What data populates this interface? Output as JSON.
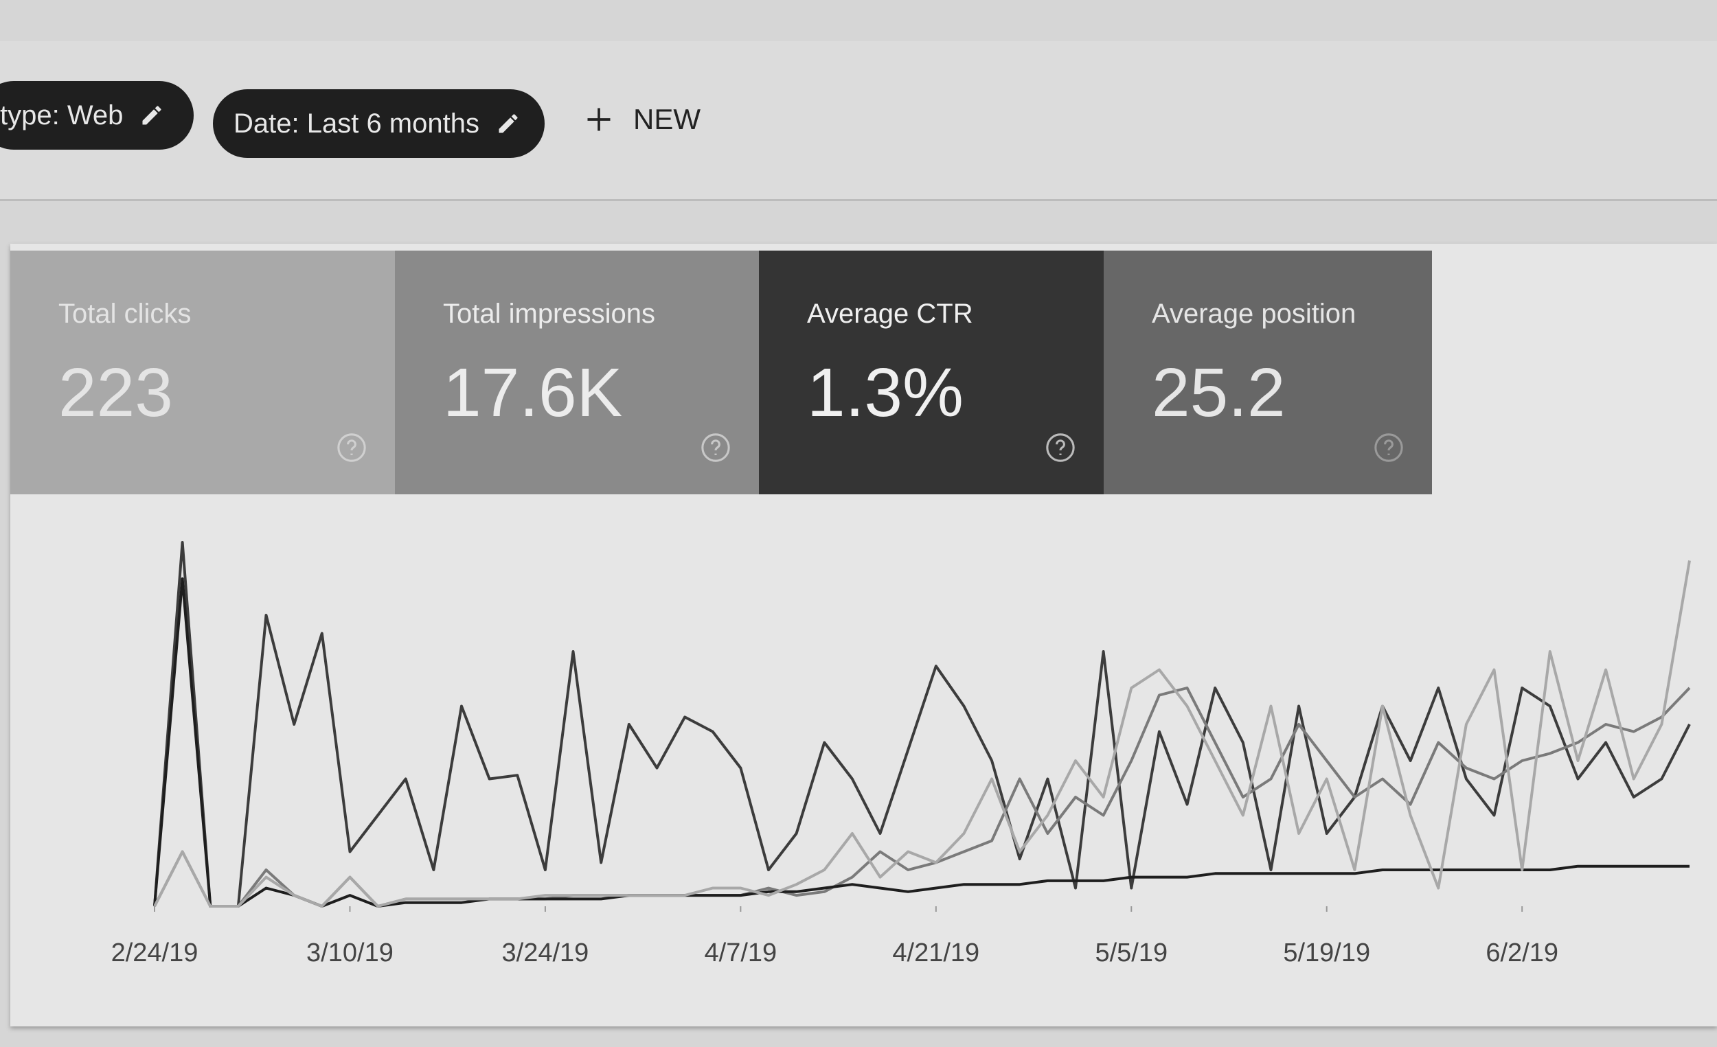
{
  "filters": {
    "type_chip": "type: Web",
    "date_chip": "Date: Last 6 months",
    "new_button": "NEW"
  },
  "cards": [
    {
      "label": "Total clicks",
      "value": "223"
    },
    {
      "label": "Total impressions",
      "value": "17.6K"
    },
    {
      "label": "Average CTR",
      "value": "1.3%"
    },
    {
      "label": "Average position",
      "value": "25.2"
    }
  ],
  "chart_data": {
    "type": "line",
    "xlim": [
      0,
      55
    ],
    "ylim": [
      0,
      100
    ],
    "xticks": [
      {
        "value": 0,
        "label": "2/24/19"
      },
      {
        "value": 7,
        "label": "3/10/19"
      },
      {
        "value": 14,
        "label": "3/24/19"
      },
      {
        "value": 21,
        "label": "4/7/19"
      },
      {
        "value": 28,
        "label": "4/21/19"
      },
      {
        "value": 35,
        "label": "5/5/19"
      },
      {
        "value": 42,
        "label": "5/19/19"
      },
      {
        "value": 49,
        "label": "6/2/19"
      }
    ],
    "series": [
      {
        "color": "#3c3c3c",
        "values": [
          0,
          100,
          0,
          0,
          80,
          50,
          75,
          15,
          25,
          35,
          10,
          55,
          35,
          36,
          10,
          70,
          12,
          50,
          38,
          52,
          48,
          38,
          10,
          20,
          45,
          35,
          20,
          43,
          66,
          55,
          40,
          13,
          35,
          5,
          70,
          5,
          48,
          28,
          60,
          45,
          10,
          55,
          20,
          30,
          55,
          40,
          60,
          35,
          25,
          60,
          55,
          35,
          45,
          30,
          35,
          50
        ]
      },
      {
        "color": "#7a7a7a",
        "values": [
          0,
          15,
          0,
          0,
          10,
          3,
          0,
          8,
          0,
          2,
          2,
          2,
          2,
          2,
          2,
          3,
          3,
          3,
          3,
          3,
          3,
          3,
          5,
          3,
          4,
          8,
          15,
          10,
          12,
          15,
          18,
          35,
          20,
          30,
          25,
          40,
          58,
          60,
          45,
          30,
          35,
          50,
          40,
          30,
          35,
          28,
          45,
          38,
          35,
          40,
          42,
          45,
          50,
          48,
          52,
          60
        ]
      },
      {
        "color": "#1e1e1e",
        "values": [
          0,
          90,
          0,
          0,
          5,
          3,
          0,
          3,
          0,
          1,
          1,
          1,
          2,
          2,
          2,
          2,
          2,
          3,
          3,
          3,
          3,
          3,
          4,
          4,
          5,
          6,
          5,
          4,
          5,
          6,
          6,
          6,
          7,
          7,
          7,
          8,
          8,
          8,
          9,
          9,
          9,
          9,
          9,
          9,
          10,
          10,
          10,
          10,
          10,
          10,
          10,
          11,
          11,
          11,
          11,
          11
        ]
      },
      {
        "color": "#a8a8a8",
        "values": [
          0,
          15,
          0,
          0,
          8,
          3,
          0,
          8,
          0,
          2,
          2,
          2,
          2,
          2,
          3,
          3,
          3,
          3,
          3,
          3,
          5,
          5,
          3,
          6,
          10,
          20,
          8,
          15,
          12,
          20,
          35,
          15,
          25,
          40,
          30,
          60,
          65,
          55,
          40,
          25,
          55,
          20,
          35,
          10,
          55,
          25,
          5,
          50,
          65,
          10,
          70,
          40,
          65,
          35,
          50,
          95
        ]
      }
    ]
  }
}
